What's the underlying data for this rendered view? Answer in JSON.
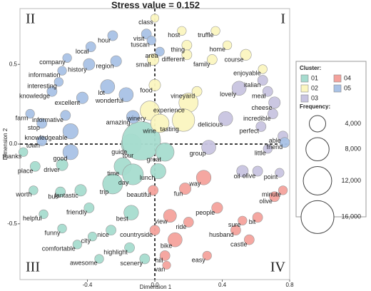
{
  "chart_data": {
    "type": "bubble",
    "title": "Stress value = 0.152",
    "x_label": "Dimension 1",
    "y_label": "Dimension 2",
    "quadrant_labels": [
      "I",
      "II",
      "III",
      "IV"
    ],
    "xlim": [
      -0.8,
      0.8
    ],
    "ylim": [
      -0.85,
      0.85
    ],
    "xticks": [
      -0.4,
      {
        "value": 0,
        "label": "0.0"
      },
      0.4,
      0.8
    ],
    "yticks": [
      -0.5,
      {
        "value": 0,
        "label": "0.0"
      },
      0.5
    ],
    "legend_title": "Cluster:",
    "size_legend_title": "Frequency:",
    "size_legend": [
      {
        "value": 4000,
        "label": "4,000"
      },
      {
        "value": 8000,
        "label": "8,000"
      },
      {
        "value": 12000,
        "label": "12,000"
      },
      {
        "value": 16000,
        "label": "16,000"
      }
    ],
    "series": [
      {
        "name": "01",
        "color": "#a6dccf",
        "labels": [
          "guide",
          "tour",
          "great",
          "time",
          "day",
          "lunch",
          "trip",
          "thanks",
          "place",
          "driver",
          "worth",
          "bus",
          "fantastic",
          "friendly",
          "best",
          "helpful",
          "funny",
          "nice",
          "comfortable",
          "city",
          "highlight",
          "awesome",
          "scenery"
        ],
        "x": [
          -0.14,
          -0.08,
          0.06,
          -0.19,
          -0.13,
          0.02,
          -0.25,
          -0.78,
          -0.71,
          -0.55,
          -0.72,
          -0.56,
          -0.44,
          -0.39,
          -0.14,
          -0.66,
          -0.55,
          -0.26,
          -0.46,
          -0.37,
          -0.15,
          -0.33,
          -0.06
        ],
        "y": [
          0.0,
          0.02,
          -0.05,
          -0.14,
          -0.19,
          -0.17,
          -0.25,
          -0.05,
          -0.14,
          -0.13,
          -0.29,
          -0.3,
          -0.29,
          -0.4,
          -0.43,
          -0.44,
          -0.53,
          -0.54,
          -0.63,
          -0.58,
          -0.65,
          -0.72,
          -0.72
        ],
        "sizes": [
          6000,
          22000,
          5000,
          4500,
          6500,
          3500,
          6000,
          1200,
          1500,
          2000,
          1200,
          1500,
          2000,
          1500,
          3200,
          1200,
          1200,
          1500,
          1200,
          1200,
          1500,
          1200,
          1500
        ]
      },
      {
        "name": "02",
        "color": "#fbf6c0",
        "labels": [
          "class",
          "host",
          "truffle",
          "thing",
          "home",
          "small",
          "different",
          "family",
          "course",
          "enjoyable",
          "food",
          "vineyard",
          "winery",
          "wine",
          "experience",
          "tasting"
        ],
        "x": [
          0.0,
          0.16,
          0.36,
          0.19,
          0.43,
          -0.01,
          0.19,
          0.34,
          0.54,
          0.64,
          0.0,
          0.25,
          -0.03,
          0.03,
          0.2,
          0.17
        ],
        "y": [
          0.79,
          0.71,
          0.71,
          0.62,
          0.62,
          0.53,
          0.56,
          0.53,
          0.56,
          0.47,
          0.37,
          0.33,
          0.21,
          0.13,
          0.26,
          0.15
        ],
        "sizes": [
          1000,
          1200,
          1200,
          1500,
          1200,
          2000,
          1500,
          1500,
          1800,
          1200,
          2000,
          1500,
          5500,
          5000,
          5500,
          7500
        ]
      },
      {
        "name": "03",
        "color": "#c8c4e0",
        "labels": [
          "lovely",
          "italian",
          "meal",
          "cheese",
          "delicious",
          "incredible",
          "perfect",
          "able",
          "little",
          "group",
          "oil",
          "olive",
          "point"
        ],
        "x": [
          0.5,
          0.64,
          0.67,
          0.71,
          0.42,
          0.7,
          0.63,
          0.76,
          0.67,
          0.32,
          0.52,
          0.61,
          0.74
        ],
        "y": [
          0.35,
          0.4,
          0.33,
          0.26,
          0.16,
          0.19,
          0.11,
          0.05,
          -0.03,
          -0.02,
          -0.17,
          -0.17,
          -0.18
        ],
        "sizes": [
          3000,
          1500,
          1500,
          2000,
          3000,
          1500,
          1500,
          1500,
          1200,
          3000,
          2000,
          1500,
          1200
        ]
      },
      {
        "name": "04",
        "color": "#f4a29c",
        "labels": [
          "way",
          "fun",
          "beautiful",
          "minute",
          "olive",
          "view",
          "people",
          "bit",
          "sure",
          "countryside",
          "ride",
          "husband",
          "castle",
          "bike",
          "easy",
          "hill",
          "van"
        ],
        "x": [
          0.29,
          0.18,
          -0.01,
          0.76,
          0.71,
          0.09,
          0.37,
          0.61,
          0.52,
          0.0,
          0.2,
          0.48,
          0.56,
          0.12,
          0.31,
          0.06,
          0.07
        ],
        "y": [
          -0.21,
          -0.28,
          -0.29,
          -0.29,
          -0.33,
          -0.45,
          -0.4,
          -0.46,
          -0.48,
          -0.54,
          -0.49,
          -0.54,
          -0.6,
          -0.6,
          -0.7,
          -0.7,
          -0.76
        ],
        "sizes": [
          3200,
          2000,
          1500,
          1200,
          1500,
          2500,
          1800,
          1500,
          1200,
          1500,
          1500,
          1500,
          1500,
          3000,
          1200,
          1500,
          1000
        ]
      },
      {
        "name": "05",
        "color": "#a9c2e6",
        "labels": [
          "visit",
          "hour",
          "tuscan",
          "local",
          "area",
          "company",
          "history",
          "region",
          "information",
          "interesting",
          "knowledge",
          "lot",
          "wonderful",
          "excellent",
          "informative",
          "farm",
          "amazing",
          "stop",
          "knowledgeable",
          "town",
          "good",
          "friend"
        ],
        "x": [
          -0.05,
          -0.25,
          -0.02,
          -0.38,
          0.03,
          -0.52,
          -0.39,
          -0.23,
          -0.55,
          -0.57,
          -0.61,
          -0.28,
          -0.17,
          -0.43,
          -0.53,
          -0.74,
          -0.13,
          -0.67,
          -0.5,
          -0.67,
          -0.5,
          0.77
        ],
        "y": [
          0.69,
          0.68,
          0.65,
          0.61,
          0.58,
          0.54,
          0.5,
          0.52,
          0.46,
          0.39,
          0.33,
          0.36,
          0.31,
          0.29,
          0.18,
          0.19,
          0.17,
          0.13,
          0.08,
          0.02,
          -0.05,
          0.01
        ],
        "sizes": [
          1500,
          1500,
          1200,
          1500,
          1200,
          1200,
          2000,
          1800,
          1200,
          1200,
          1500,
          3000,
          3000,
          2000,
          1500,
          1200,
          2500,
          1500,
          3500,
          1500,
          3500,
          1500
        ]
      }
    ]
  }
}
